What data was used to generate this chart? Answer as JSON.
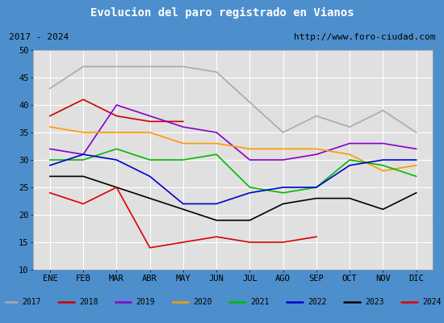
{
  "title": "Evolucion del paro registrado en Vianos",
  "subtitle_left": "2017 - 2024",
  "subtitle_right": "http://www.foro-ciudad.com",
  "xlabel_ticks": [
    "ENE",
    "FEB",
    "MAR",
    "ABR",
    "MAY",
    "JUN",
    "JUL",
    "AGO",
    "SEP",
    "OCT",
    "NOV",
    "DIC"
  ],
  "ylim": [
    10,
    50
  ],
  "yticks": [
    10,
    15,
    20,
    25,
    30,
    35,
    40,
    45,
    50
  ],
  "series": {
    "2017": {
      "color": "#aaaaaa",
      "data": [
        43,
        47,
        47,
        47,
        47,
        46,
        null,
        35,
        38,
        36,
        39,
        35
      ]
    },
    "2018": {
      "color": "#cc0000",
      "data": [
        38,
        41,
        38,
        37,
        37,
        null,
        null,
        null,
        null,
        null,
        null,
        null
      ]
    },
    "2019": {
      "color": "#8800cc",
      "data": [
        32,
        31,
        40,
        38,
        36,
        35,
        30,
        30,
        31,
        33,
        33,
        32
      ]
    },
    "2020": {
      "color": "#ff9900",
      "data": [
        36,
        35,
        35,
        35,
        33,
        33,
        32,
        32,
        32,
        31,
        28,
        29
      ]
    },
    "2021": {
      "color": "#00bb00",
      "data": [
        30,
        30,
        32,
        30,
        30,
        31,
        25,
        24,
        25,
        30,
        29,
        27
      ]
    },
    "2022": {
      "color": "#0000cc",
      "data": [
        29,
        31,
        30,
        27,
        22,
        22,
        24,
        25,
        25,
        29,
        30,
        30
      ]
    },
    "2023": {
      "color": "#000000",
      "data": [
        27,
        27,
        25,
        23,
        21,
        19,
        19,
        22,
        23,
        23,
        21,
        24
      ]
    },
    "2024": {
      "color": "#dd0000",
      "data": [
        24,
        22,
        25,
        14,
        15,
        16,
        15,
        15,
        16,
        null,
        null,
        null
      ]
    }
  },
  "legend_order": [
    "2017",
    "2018",
    "2019",
    "2020",
    "2021",
    "2022",
    "2023",
    "2024"
  ],
  "title_bg": "#4d8fcc",
  "title_color": "#ffffff",
  "plot_bg": "#e0e0e0",
  "grid_color": "#ffffff",
  "fig_bg": "#4d8fcc",
  "border_color": "#4d8fcc"
}
